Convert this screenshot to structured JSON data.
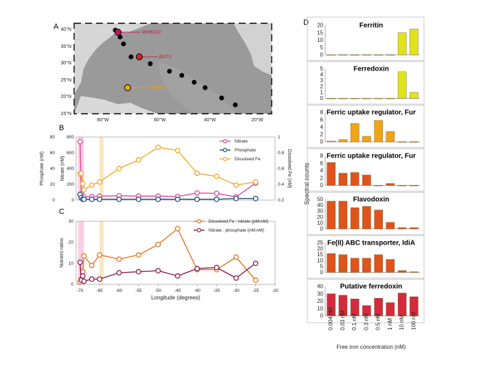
{
  "panel_labels": {
    "a": "A",
    "b": "B",
    "c": "C",
    "d": "D"
  },
  "map": {
    "lat_labels": [
      "40°N",
      "35°N",
      "30°N",
      "25°N",
      "20°N",
      "15°N"
    ],
    "lon_labels": [
      "80°W",
      "60°W",
      "40°W",
      "20°W"
    ],
    "stations": [
      {
        "name": "WH8020",
        "color": "#c2185b"
      },
      {
        "name": "BATS",
        "color": "#c62828"
      },
      {
        "name": "WH8102",
        "color": "#e8a317"
      }
    ],
    "colors": {
      "station": "#000000"
    }
  },
  "chart_data": [
    {
      "type": "line",
      "title": "",
      "xlabel": "",
      "xlim": [
        -71,
        -20
      ],
      "x_ticks": [],
      "left_axes": [
        {
          "label": "Phosphate (nM)",
          "lim": [
            0,
            80
          ],
          "ticks": [
            "0",
            "20",
            "40",
            "60",
            "80"
          ]
        },
        {
          "label": "Nitrate (nM)",
          "lim": [
            0,
            800
          ],
          "ticks": [
            "0",
            "200",
            "400",
            "600",
            "800"
          ]
        }
      ],
      "right_axis": {
        "label": "Dissolved Fe (nM)",
        "lim": [
          0.2,
          1
        ],
        "ticks": [
          "0.2",
          "0.4",
          "0.6",
          "0.8",
          "1"
        ]
      },
      "highlight_bands": [
        {
          "x": [
            -70.5,
            -69
          ],
          "color": "#f7c6dc"
        },
        {
          "x": [
            -65,
            -64
          ],
          "color": "#fbe3b3"
        }
      ],
      "series": [
        {
          "name": "Nitrate",
          "color": "#e0479e",
          "axis": "nitrate",
          "x": [
            -70,
            -69.7,
            -69.3,
            -69,
            -67,
            -65,
            -60,
            -55,
            -50,
            -45,
            -40,
            -35,
            -30,
            -25
          ],
          "y": [
            740,
            80,
            40,
            40,
            45,
            50,
            55,
            50,
            50,
            45,
            90,
            85,
            40,
            215
          ]
        },
        {
          "name": "Phosphate",
          "color": "#1f4e79",
          "axis": "phosphate",
          "x": [
            -70,
            -69.7,
            -69.3,
            -69,
            -67,
            -65,
            -60,
            -55,
            -50,
            -45,
            -40,
            -35,
            -30,
            -25
          ],
          "y": [
            7,
            3,
            1,
            1,
            1,
            1,
            1,
            1,
            1,
            1,
            1,
            1,
            2,
            2
          ]
        },
        {
          "name": "Dissolved Fe",
          "color": "#f5a623",
          "axis": "fe",
          "x": [
            -70,
            -69.7,
            -69.3,
            -69,
            -67,
            -65,
            -60,
            -55,
            -50,
            -45,
            -40,
            -35,
            -30,
            -25
          ],
          "y": [
            0.53,
            0.54,
            0.41,
            0.33,
            0.39,
            0.43,
            0.6,
            0.71,
            0.87,
            0.83,
            0.54,
            0.5,
            0.39,
            0.43
          ]
        }
      ]
    },
    {
      "type": "line",
      "title": "",
      "xlabel": "Longitude (degrees)",
      "ylabel": "Nutrient ratios",
      "xlim": [
        -71,
        -20
      ],
      "ylim": [
        0,
        30
      ],
      "x_ticks": [
        "-70",
        "-65",
        "-60",
        "-55",
        "-50",
        "-45",
        "-40",
        "-35",
        "-30",
        "-25",
        "-20"
      ],
      "y_ticks": [
        "0",
        "10",
        "20",
        "30"
      ],
      "series": [
        {
          "name": "Dissolved Fe : nitrate (pM:nM)",
          "color": "#e8731c",
          "x": [
            -70,
            -69.7,
            -69.3,
            -69,
            -67,
            -65,
            -60,
            -55,
            -50,
            -45,
            -40,
            -35,
            -30,
            -25
          ],
          "y": [
            1.2,
            2.5,
            6,
            13.5,
            9,
            14,
            12,
            14,
            19,
            26.5,
            7,
            7,
            13,
            2
          ]
        },
        {
          "name": "Nitrate : phosphate (nM:nM)",
          "color": "#8b1a4a",
          "x": [
            -70,
            -69.7,
            -69.3,
            -69,
            -67,
            -65,
            -60,
            -55,
            -50,
            -45,
            -40,
            -35,
            -30,
            -25
          ],
          "y": [
            10.5,
            2,
            4,
            1.5,
            2.5,
            2.5,
            5.5,
            6,
            6.5,
            4,
            7.5,
            8,
            3,
            10
          ]
        }
      ]
    },
    {
      "type": "bar",
      "ylabel": "Spectral counts",
      "xlabel": "Free iron concentration (nM)",
      "categories": [
        "0.004 nM",
        "0.03 nM",
        "0.1 nM",
        "0.3 nM",
        "0.5 nM",
        "1 nM",
        "10 nM",
        "100 nM"
      ],
      "category_positions": [
        1,
        2,
        3,
        4,
        5,
        6,
        7,
        8
      ],
      "category_label_slots": [
        1,
        2,
        3,
        4,
        5,
        6,
        7,
        8
      ],
      "panels": [
        {
          "title": "Ferritin",
          "ylim": [
            0,
            20
          ],
          "y_ticks": [
            "0",
            "5",
            "10",
            "15",
            "20"
          ],
          "color": "#e2e31f",
          "values": [
            0,
            0,
            0,
            0,
            0,
            0,
            15,
            17.5
          ]
        },
        {
          "title": "Ferredoxin",
          "ylim": [
            0,
            5
          ],
          "y_ticks": [
            "0",
            "1",
            "2",
            "3",
            "4",
            "5"
          ],
          "color": "#e2e31f",
          "values": [
            0,
            0,
            0,
            0,
            0,
            0,
            4.5,
            1
          ]
        },
        {
          "title": "Ferric uptake regulator, Fur",
          "ylim": [
            0,
            8
          ],
          "y_ticks": [
            "0",
            "2",
            "4",
            "6",
            "8"
          ],
          "color": "#f0a418",
          "values": [
            0.2,
            0.6,
            5,
            1.5,
            5.8,
            2.8,
            0,
            0
          ]
        },
        {
          "title": "Ferric uptake regulator, Fur",
          "ylim": [
            0,
            8
          ],
          "y_ticks": [
            "0",
            "2",
            "4",
            "6",
            "8"
          ],
          "color": "#e0531b",
          "values": [
            6.2,
            3.3,
            3.5,
            2.8,
            0,
            0.5,
            0,
            0
          ]
        },
        {
          "title": "Flavodoxin",
          "ylim": [
            0,
            50
          ],
          "y_ticks": [
            "0",
            "10",
            "20",
            "30",
            "40",
            "50"
          ],
          "color": "#e0531b",
          "values": [
            47,
            47,
            36,
            38,
            32,
            11,
            2,
            2
          ]
        },
        {
          "title": "Fe(II) ABC transporter, IdiA",
          "ylim": [
            0,
            25
          ],
          "y_ticks": [
            "0",
            "5",
            "10",
            "15",
            "20",
            "25"
          ],
          "color": "#e0531b",
          "values": [
            16,
            15,
            12,
            12,
            15,
            11,
            1.5,
            0.5
          ]
        },
        {
          "title": "Putative ferredoxin",
          "ylim": [
            0,
            40
          ],
          "y_ticks": [
            "0",
            "10",
            "20",
            "30",
            "40"
          ],
          "color": "#d42a3c",
          "values": [
            30,
            28,
            23,
            14,
            24,
            18,
            31,
            26
          ]
        }
      ]
    }
  ]
}
